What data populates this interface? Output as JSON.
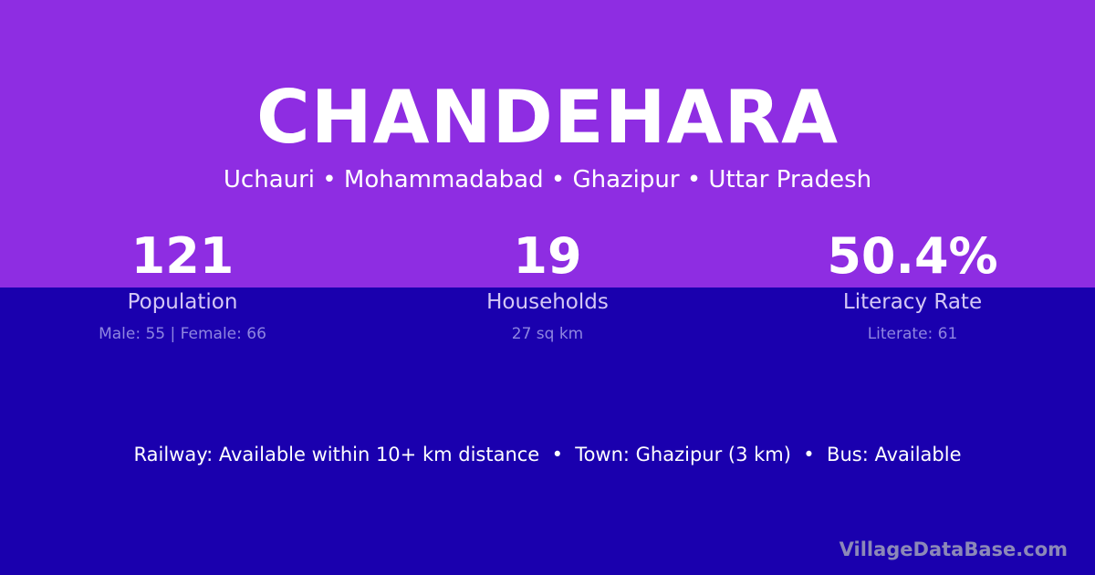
{
  "title": "CHANDEHARA",
  "subtitle": "Uchauri • Mohammadabad • Ghazipur • Uttar Pradesh",
  "stats": [
    {
      "value": "121",
      "label": "Population",
      "detail": "Male: 55 | Female: 66"
    },
    {
      "value": "19",
      "label": "Households",
      "detail": "27 sq km"
    },
    {
      "value": "50.4%",
      "label": "Literacy Rate",
      "detail": "Literate: 61"
    }
  ],
  "info": "Railway: Available within 10+ km distance  •  Town: Ghazipur (3 km)  •  Bus: Available",
  "brand": "VillageDataBase.com",
  "colors": {
    "top": "#8e2de2",
    "bottom": "#1a00ae"
  }
}
